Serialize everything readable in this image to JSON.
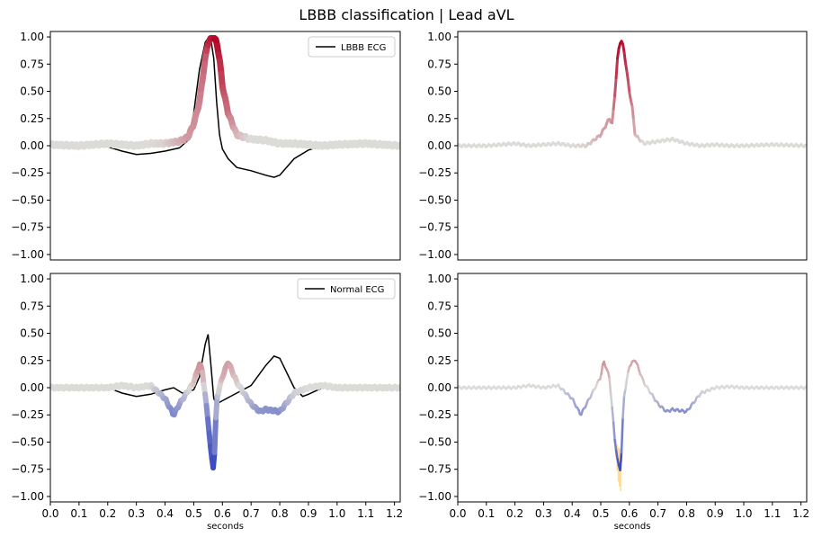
{
  "figure": {
    "title": "LBBB classification | Lead aVL"
  },
  "chart_data": [
    {
      "type": "line",
      "panel": "top-left",
      "xlim": [
        0.0,
        1.22
      ],
      "ylim": [
        -1.05,
        1.05
      ],
      "yticks": [
        "1.00",
        "0.75",
        "0.50",
        "0.25",
        "0.00",
        "−0.25",
        "−0.50",
        "−0.75",
        "−1.00"
      ],
      "xticks": [],
      "xlabel": "",
      "legend": {
        "label": "LBBB ECG",
        "placement": "top-right"
      },
      "series": [
        {
          "name": "LBBB ECG",
          "color": "#000000",
          "x": [
            0.0,
            0.1,
            0.2,
            0.25,
            0.3,
            0.35,
            0.4,
            0.45,
            0.48,
            0.5,
            0.52,
            0.54,
            0.55,
            0.56,
            0.57,
            0.58,
            0.59,
            0.6,
            0.62,
            0.65,
            0.7,
            0.75,
            0.78,
            0.8,
            0.85,
            0.9,
            0.95,
            1.0,
            1.1,
            1.22
          ],
          "y": [
            0.0,
            0.0,
            -0.01,
            -0.05,
            -0.08,
            -0.07,
            -0.05,
            -0.02,
            0.05,
            0.3,
            0.7,
            0.95,
            0.99,
            0.97,
            0.8,
            0.4,
            0.1,
            -0.03,
            -0.12,
            -0.2,
            -0.23,
            -0.27,
            -0.29,
            -0.27,
            -0.12,
            -0.04,
            0.0,
            0.01,
            0.0,
            0.0
          ]
        },
        {
          "name": "",
          "color": "attribution",
          "x": [
            0.0,
            0.1,
            0.2,
            0.25,
            0.3,
            0.35,
            0.4,
            0.45,
            0.48,
            0.5,
            0.52,
            0.54,
            0.55,
            0.56,
            0.57,
            0.58,
            0.59,
            0.6,
            0.62,
            0.65,
            0.7,
            0.75,
            0.8,
            0.85,
            0.9,
            0.95,
            1.0,
            1.1,
            1.22
          ],
          "y": [
            0.01,
            0.0,
            0.02,
            0.01,
            0.0,
            0.02,
            0.02,
            0.04,
            0.08,
            0.2,
            0.4,
            0.8,
            0.95,
            0.98,
            1.0,
            0.95,
            0.8,
            0.55,
            0.3,
            0.1,
            0.06,
            0.05,
            0.02,
            0.02,
            0.01,
            0.0,
            0.01,
            0.02,
            0.0
          ],
          "a": [
            0.0,
            0.0,
            0.0,
            0.0,
            0.0,
            0.0,
            0.05,
            0.2,
            0.3,
            0.35,
            0.4,
            0.55,
            0.8,
            0.9,
            0.95,
            1.0,
            0.85,
            0.7,
            0.5,
            0.2,
            0.0,
            0.0,
            0.0,
            0.0,
            0.0,
            0.0,
            0.0,
            0.0,
            0.0
          ]
        }
      ]
    },
    {
      "type": "line",
      "panel": "top-right",
      "xlim": [
        0.0,
        1.22
      ],
      "ylim": [
        -1.05,
        1.05
      ],
      "yticks": [
        "1.00",
        "0.75",
        "0.50",
        "0.25",
        "0.00",
        "−0.25",
        "−0.50",
        "−0.75",
        "−1.00"
      ],
      "xticks": [],
      "xlabel": "",
      "series": [
        {
          "name": "",
          "color": "attribution",
          "x": [
            0.0,
            0.1,
            0.2,
            0.25,
            0.3,
            0.35,
            0.4,
            0.45,
            0.5,
            0.52,
            0.53,
            0.54,
            0.55,
            0.56,
            0.57,
            0.58,
            0.59,
            0.6,
            0.61,
            0.62,
            0.65,
            0.7,
            0.75,
            0.8,
            0.85,
            0.9,
            0.95,
            1.0,
            1.1,
            1.22
          ],
          "y": [
            0.0,
            0.0,
            0.02,
            0.0,
            0.01,
            0.02,
            0.0,
            0.0,
            0.1,
            0.2,
            0.25,
            0.2,
            0.5,
            0.85,
            0.98,
            0.9,
            0.7,
            0.5,
            0.35,
            0.1,
            0.02,
            0.04,
            0.06,
            0.02,
            0.0,
            0.01,
            0.0,
            0.0,
            0.01,
            0.0
          ],
          "a": [
            0.0,
            0.0,
            0.0,
            0.0,
            0.0,
            0.0,
            0.0,
            0.05,
            0.25,
            0.3,
            0.3,
            0.3,
            0.6,
            0.9,
            1.0,
            0.9,
            0.75,
            0.6,
            0.4,
            0.2,
            0.0,
            0.0,
            0.0,
            0.0,
            0.0,
            0.0,
            0.0,
            0.0,
            0.0,
            0.0
          ]
        }
      ]
    },
    {
      "type": "line",
      "panel": "bottom-left",
      "xlim": [
        0.0,
        1.22
      ],
      "ylim": [
        -1.05,
        1.05
      ],
      "yticks": [
        "1.00",
        "0.75",
        "0.50",
        "0.25",
        "0.00",
        "−0.25",
        "−0.50",
        "−0.75",
        "−1.00"
      ],
      "xticks": [
        "0.0",
        "0.1",
        "0.2",
        "0.3",
        "0.4",
        "0.5",
        "0.6",
        "0.7",
        "0.8",
        "0.9",
        "1.0",
        "1.1",
        "1.2"
      ],
      "xlabel": "seconds",
      "legend": {
        "label": "Normal ECG",
        "placement": "top-right"
      },
      "series": [
        {
          "name": "Normal ECG",
          "color": "#000000",
          "x": [
            0.0,
            0.1,
            0.2,
            0.25,
            0.3,
            0.35,
            0.4,
            0.43,
            0.46,
            0.5,
            0.52,
            0.54,
            0.55,
            0.56,
            0.57,
            0.58,
            0.6,
            0.65,
            0.7,
            0.75,
            0.78,
            0.8,
            0.85,
            0.88,
            0.9,
            0.95,
            1.0,
            1.1,
            1.22
          ],
          "y": [
            0.0,
            0.0,
            0.0,
            -0.05,
            -0.08,
            -0.06,
            -0.02,
            0.0,
            -0.05,
            -0.02,
            0.1,
            0.4,
            0.49,
            0.2,
            -0.1,
            -0.15,
            -0.12,
            -0.05,
            0.02,
            0.2,
            0.29,
            0.27,
            0.0,
            -0.08,
            -0.06,
            0.0,
            0.0,
            0.0,
            0.0
          ]
        },
        {
          "name": "",
          "color": "attribution",
          "x": [
            0.0,
            0.1,
            0.2,
            0.25,
            0.3,
            0.35,
            0.4,
            0.43,
            0.45,
            0.5,
            0.52,
            0.53,
            0.55,
            0.56,
            0.57,
            0.58,
            0.6,
            0.62,
            0.65,
            0.7,
            0.73,
            0.75,
            0.8,
            0.85,
            0.9,
            0.95,
            1.0,
            1.1,
            1.22
          ],
          "y": [
            0.0,
            0.0,
            0.0,
            0.02,
            0.0,
            0.02,
            -0.1,
            -0.25,
            -0.15,
            0.05,
            0.22,
            0.15,
            -0.3,
            -0.6,
            -0.76,
            -0.1,
            0.1,
            0.24,
            0.05,
            -0.15,
            -0.22,
            -0.2,
            -0.22,
            -0.05,
            0.0,
            0.02,
            0.0,
            0.0,
            0.0
          ],
          "a": [
            0.0,
            0.0,
            0.0,
            0.0,
            0.0,
            0.0,
            -0.35,
            -0.6,
            -0.45,
            0.1,
            0.35,
            0.3,
            -0.7,
            -0.9,
            -1.0,
            -0.3,
            0.2,
            0.3,
            0.1,
            -0.3,
            -0.5,
            -0.5,
            -0.55,
            -0.1,
            0.0,
            0.0,
            0.0,
            0.0,
            0.0
          ]
        }
      ]
    },
    {
      "type": "line",
      "panel": "bottom-right",
      "xlim": [
        0.0,
        1.22
      ],
      "ylim": [
        -1.05,
        1.05
      ],
      "yticks": [
        "1.00",
        "0.75",
        "0.50",
        "0.25",
        "0.00",
        "−0.25",
        "−0.50",
        "−0.75",
        "−1.00"
      ],
      "xticks": [
        "0.0",
        "0.1",
        "0.2",
        "0.3",
        "0.4",
        "0.5",
        "0.6",
        "0.7",
        "0.8",
        "0.9",
        "1.0",
        "1.1",
        "1.2"
      ],
      "xlabel": "seconds",
      "series": [
        {
          "name": "",
          "color": "attribution",
          "x": [
            0.0,
            0.1,
            0.2,
            0.25,
            0.3,
            0.35,
            0.4,
            0.43,
            0.45,
            0.5,
            0.51,
            0.53,
            0.55,
            0.56,
            0.57,
            0.58,
            0.6,
            0.62,
            0.65,
            0.7,
            0.73,
            0.75,
            0.8,
            0.85,
            0.9,
            0.95,
            1.0,
            1.1,
            1.22
          ],
          "y": [
            0.0,
            0.0,
            0.0,
            0.02,
            0.0,
            0.02,
            -0.1,
            -0.25,
            -0.15,
            0.1,
            0.25,
            0.1,
            -0.5,
            -0.7,
            -0.76,
            -0.1,
            0.2,
            0.26,
            0.05,
            -0.15,
            -0.22,
            -0.2,
            -0.22,
            -0.05,
            0.0,
            0.01,
            0.0,
            0.0,
            0.0
          ],
          "a": [
            0.0,
            0.0,
            0.0,
            0.0,
            0.0,
            0.0,
            -0.3,
            -0.5,
            -0.4,
            0.2,
            0.35,
            0.2,
            -0.6,
            -0.9,
            -1.0,
            -0.3,
            0.2,
            0.3,
            0.1,
            -0.3,
            -0.5,
            -0.5,
            -0.55,
            -0.1,
            0.0,
            0.0,
            0.0,
            0.0,
            0.0
          ],
          "band": [
            0.0,
            0.0,
            0.0,
            0.0,
            0.0,
            0.0,
            0.0,
            0.0,
            0.0,
            0.0,
            0.0,
            0.0,
            0.05,
            0.15,
            0.2,
            0.05,
            0.0,
            0.0,
            0.0,
            0.0,
            0.0,
            0.0,
            0.0,
            0.0,
            0.0,
            0.0,
            0.0,
            0.0,
            0.0
          ]
        }
      ]
    }
  ]
}
